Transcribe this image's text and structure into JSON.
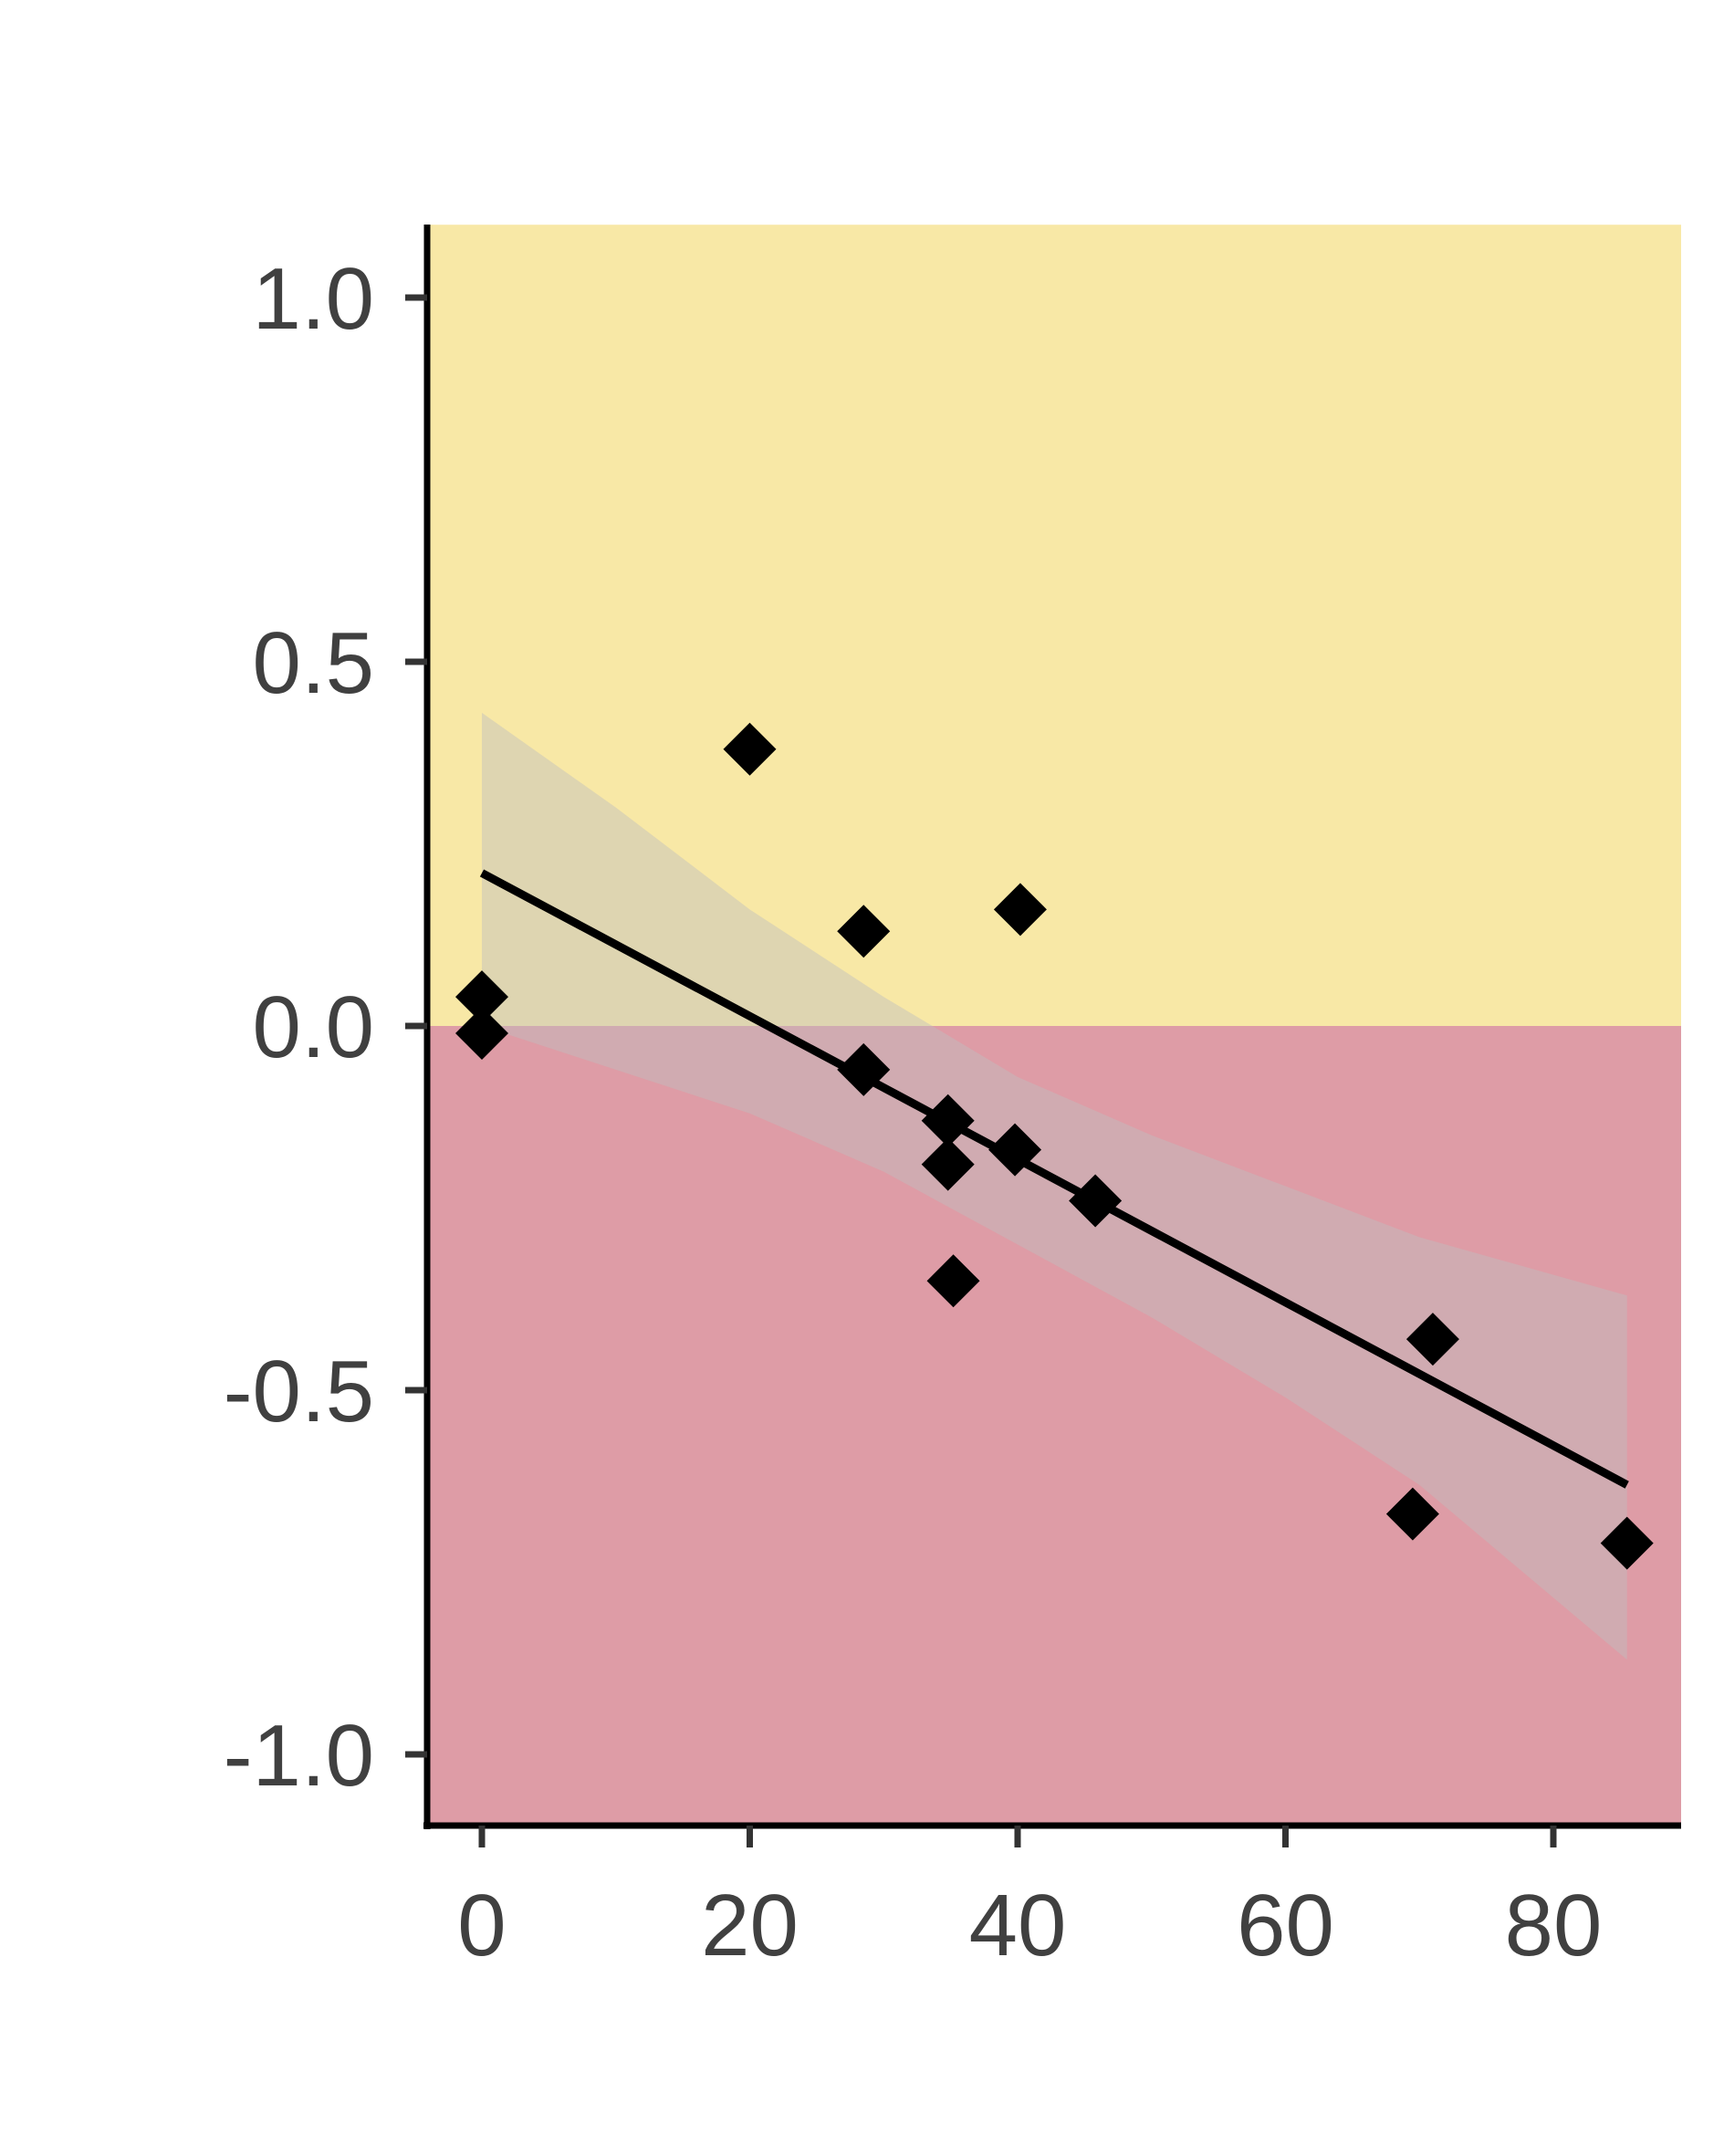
{
  "chart_data": {
    "type": "scatter",
    "title": "",
    "xlabel": "",
    "ylabel": "",
    "xlim": [
      -4,
      90
    ],
    "ylim": [
      -1.1,
      1.1
    ],
    "x_ticks": [
      0,
      20,
      40,
      60,
      80
    ],
    "x_tick_labels": [
      "0",
      "20",
      "40",
      "60",
      "80"
    ],
    "y_ticks": [
      1.0,
      0.5,
      0.0,
      -0.5,
      -1.0
    ],
    "y_tick_labels": [
      "1.0",
      "0.5",
      "0.0",
      "-0.5",
      "-1.0"
    ],
    "grid": false,
    "legend": "none",
    "background_bands": [
      {
        "from": 0,
        "to": 1.1,
        "color": "#f8e8a6"
      },
      {
        "from": -1.1,
        "to": 0,
        "color": "#de9ca6"
      }
    ],
    "series": [
      {
        "marker": "diamond",
        "color": "#000000",
        "x": [
          0,
          0,
          20,
          28.5,
          28.5,
          34.8,
          34.8,
          35.2,
          40.2,
          39.8,
          45.8,
          71,
          69.5,
          85.5
        ],
        "y": [
          0.04,
          -0.01,
          0.38,
          0.13,
          -0.06,
          -0.13,
          -0.19,
          -0.35,
          0.16,
          -0.17,
          -0.24,
          -0.43,
          -0.67,
          -0.71
        ]
      }
    ],
    "trend_line": {
      "color": "#000000",
      "x": [
        0,
        85.5
      ],
      "y": [
        0.21,
        -0.63
      ]
    },
    "confidence_band": {
      "color": "#bfbfbf",
      "x": [
        0,
        10,
        20,
        30,
        40,
        50,
        60,
        70,
        85.5
      ],
      "upper": [
        0.43,
        0.3,
        0.16,
        0.04,
        -0.07,
        -0.15,
        -0.22,
        -0.29,
        -0.37
      ],
      "lower": [
        0.0,
        -0.06,
        -0.12,
        -0.2,
        -0.3,
        -0.4,
        -0.51,
        -0.63,
        -0.87
      ]
    }
  }
}
